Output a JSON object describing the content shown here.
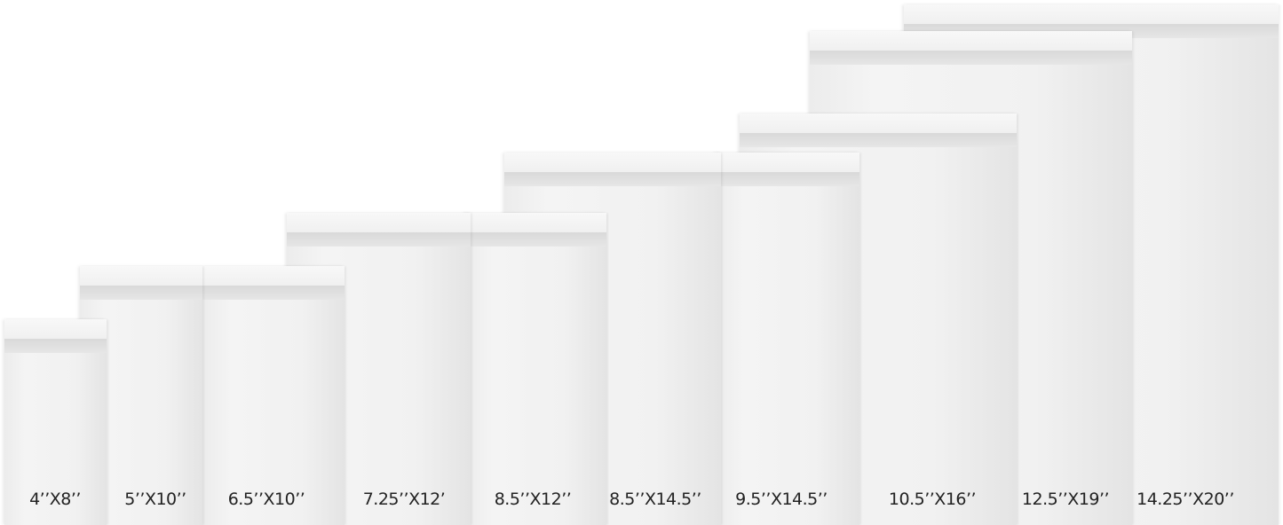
{
  "mailers": [
    {
      "size": "4’’X8’’"
    },
    {
      "size": "5’’X10’’"
    },
    {
      "size": "6.5’’X10’’"
    },
    {
      "size": "7.25’’X12’"
    },
    {
      "size": "8.5’’X12’’"
    },
    {
      "size": "8.5’’X14.5’’"
    },
    {
      "size": "9.5’’X14.5’’"
    },
    {
      "size": "10.5’’X16’’"
    },
    {
      "size": "12.5’’X19’’"
    },
    {
      "size": "14.25’’X20’’"
    }
  ]
}
